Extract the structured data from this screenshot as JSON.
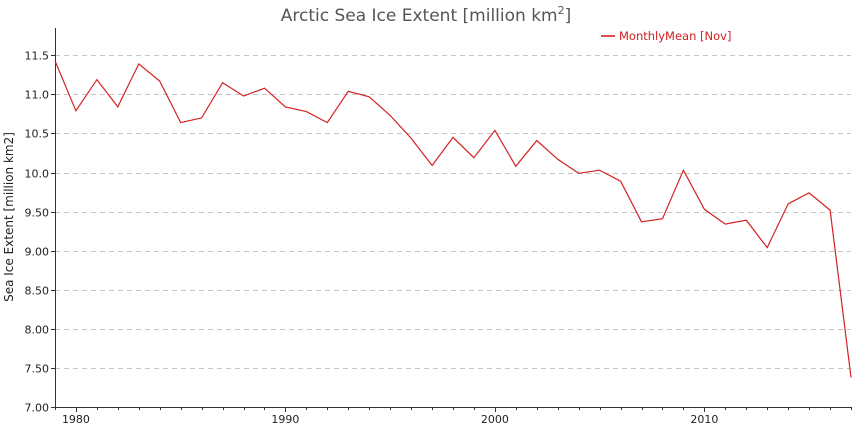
{
  "chart_data": {
    "type": "line",
    "title": "Arctic Sea Ice Extent [million km",
    "title_sup": "2",
    "title_end": "]",
    "xlabel": "",
    "ylabel": "Sea Ice Extent [million km2]",
    "xlim": [
      1979,
      2017
    ],
    "ylim": [
      7.0,
      11.85
    ],
    "xticks": [
      1980,
      1990,
      2000,
      2010
    ],
    "yticks": [
      7.0,
      7.5,
      8.0,
      8.5,
      9.0,
      9.5,
      10.0,
      10.5,
      11.0,
      11.5
    ],
    "ytick_labels": [
      "7.00",
      "7.50",
      "8.00",
      "8.50",
      "9.00",
      "9.50",
      "10.0",
      "10.5",
      "11.0",
      "11.5"
    ],
    "grid": "horizontal-dashed",
    "legend": "top-right",
    "series": [
      {
        "name": "MonthlyMean [Nov]",
        "color": "#d42020",
        "x": [
          1979,
          1980,
          1981,
          1982,
          1983,
          1984,
          1985,
          1986,
          1987,
          1988,
          1989,
          1990,
          1991,
          1992,
          1993,
          1994,
          1995,
          1996,
          1997,
          1998,
          1999,
          2000,
          2001,
          2002,
          2003,
          2004,
          2005,
          2006,
          2007,
          2008,
          2009,
          2010,
          2011,
          2012,
          2013,
          2014,
          2015,
          2016,
          2017
        ],
        "values": [
          11.43,
          10.79,
          11.19,
          10.84,
          11.39,
          11.17,
          10.64,
          10.7,
          11.15,
          10.98,
          11.08,
          10.84,
          10.78,
          10.64,
          11.04,
          10.97,
          10.73,
          10.44,
          10.09,
          10.45,
          10.19,
          10.54,
          10.08,
          10.41,
          10.17,
          9.99,
          10.03,
          9.89,
          9.37,
          9.41,
          10.03,
          9.53,
          9.34,
          9.39,
          9.04,
          9.6,
          9.74,
          9.52,
          7.38
        ]
      }
    ]
  }
}
